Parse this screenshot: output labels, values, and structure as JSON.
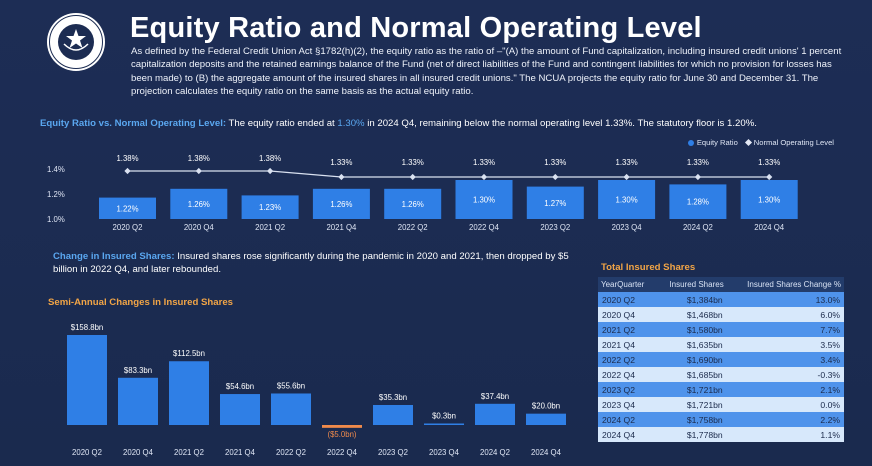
{
  "header": {
    "title": "Equity Ratio and Normal Operating Level",
    "intro": "As defined by the Federal Credit Union Act §1782(h)(2), the equity ratio as the ratio of –\"(A) the amount of Fund capitalization, including insured credit unions' 1 percent capitalization deposits and the retained earnings balance of the Fund (net of direct liabilities of the Fund and contingent liabilities for which no provision for losses has been made) to (B) the aggregate amount of the insured shares in all insured credit unions.\" The NCUA projects the equity ratio for June 30 and December 31. The projection calculates the equity ratio on the same basis as the actual equity ratio."
  },
  "section1": {
    "label": "Equity Ratio vs. Normal Operating Level:",
    "text_a": " The equity ratio ended at ",
    "highlight": "1.30%",
    "text_b": " in 2024 Q4, remaining below the normal operating level 1.33%. The statutory floor is 1.20%."
  },
  "legend": {
    "equity": "Equity Ratio",
    "normal": "Normal Operating Level"
  },
  "section2": {
    "label": "Change in Insured Shares:",
    "text": " Insured shares rose significantly during the pandemic in 2020 and 2021, then dropped by $5 billion in 2022 Q4, and later rebounded."
  },
  "section3": {
    "title": "Semi-Annual Changes in Insured Shares"
  },
  "table": {
    "title": "Total Insured Shares",
    "headers": [
      "YearQuarter",
      "Insured Shares",
      "Insured Shares Change %"
    ],
    "rows": [
      [
        "2020 Q2",
        "$1,384bn",
        "13.0%"
      ],
      [
        "2020 Q4",
        "$1,468bn",
        "6.0%"
      ],
      [
        "2021 Q2",
        "$1,580bn",
        "7.7%"
      ],
      [
        "2021 Q4",
        "$1,635bn",
        "3.5%"
      ],
      [
        "2022 Q2",
        "$1,690bn",
        "3.4%"
      ],
      [
        "2022 Q4",
        "$1,685bn",
        "-0.3%"
      ],
      [
        "2023 Q2",
        "$1,721bn",
        "2.1%"
      ],
      [
        "2023 Q4",
        "$1,721bn",
        "0.0%"
      ],
      [
        "2024 Q2",
        "$1,758bn",
        "2.2%"
      ],
      [
        "2024 Q4",
        "$1,778bn",
        "1.1%"
      ]
    ]
  },
  "chart_data": [
    {
      "type": "bar",
      "categories": [
        "2020 Q2",
        "2020 Q4",
        "2021 Q2",
        "2021 Q4",
        "2022 Q2",
        "2022 Q4",
        "2023 Q2",
        "2023 Q4",
        "2024 Q2",
        "2024 Q4"
      ],
      "series": [
        {
          "name": "Equity Ratio",
          "values": [
            1.22,
            1.26,
            1.23,
            1.26,
            1.26,
            1.3,
            1.27,
            1.3,
            1.28,
            1.3
          ],
          "labels": [
            "1.22%",
            "1.26%",
            "1.23%",
            "1.26%",
            "1.26%",
            "1.30%",
            "1.27%",
            "1.30%",
            "1.28%",
            "1.30%"
          ],
          "color": "#2f7fe6"
        },
        {
          "name": "Normal Operating Level",
          "values": [
            1.38,
            1.38,
            1.38,
            1.33,
            1.33,
            1.33,
            1.33,
            1.33,
            1.33,
            1.33
          ],
          "labels": [
            "1.38%",
            "1.38%",
            "1.38%",
            "1.33%",
            "1.33%",
            "1.33%",
            "1.33%",
            "1.33%",
            "1.33%",
            "1.33%"
          ],
          "color": "#d9e1f0"
        }
      ],
      "yticks": [
        "1.4%",
        "1.2%",
        "1.0%"
      ],
      "ylim": [
        1.0,
        1.4
      ],
      "grid": false,
      "legend": "top-right"
    },
    {
      "type": "bar",
      "title": "Semi-Annual Changes in Insured Shares",
      "categories": [
        "2020 Q2",
        "2020 Q4",
        "2021 Q2",
        "2021 Q4",
        "2022 Q2",
        "2022 Q4",
        "2023 Q2",
        "2023 Q4",
        "2024 Q2",
        "2024 Q4"
      ],
      "values": [
        158.8,
        83.3,
        112.5,
        54.6,
        55.6,
        -5.0,
        35.3,
        0.3,
        37.4,
        20.0
      ],
      "labels": [
        "$158.8bn",
        "$83.3bn",
        "$112.5bn",
        "$54.6bn",
        "$55.6bn",
        "($5.0bn)",
        "$35.3bn",
        "$0.3bn",
        "$37.4bn",
        "$20.0bn"
      ],
      "positive_color": "#2f7fe6",
      "negative_color": "#f08a4b",
      "grid": false
    }
  ]
}
